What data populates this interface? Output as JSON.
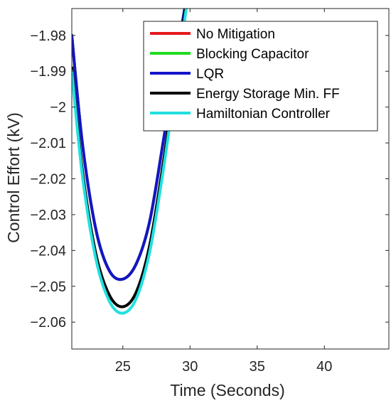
{
  "chart_data": {
    "type": "line",
    "title": "",
    "xlabel": "Time (Seconds)",
    "ylabel": "Control Effort (kV)",
    "xlim": [
      21.2,
      44.8
    ],
    "ylim": [
      -2.0675,
      -1.9725
    ],
    "xticks": [
      25,
      30,
      35,
      40
    ],
    "xtick_labels": [
      "25",
      "30",
      "35",
      "40"
    ],
    "yticks": [
      -1.98,
      -1.99,
      -2.0,
      -2.01,
      -2.02,
      -2.03,
      -2.04,
      -2.05,
      -2.06
    ],
    "ytick_labels": [
      "−1.98",
      "−1.99",
      "−2",
      "−2.01",
      "−2.02",
      "−2.03",
      "−2.04",
      "−2.05",
      "−2.06"
    ],
    "grid": false,
    "legend_position": "top-right",
    "series": [
      {
        "name": "No Mitigation",
        "color": "#e41a1c",
        "points": [
          [
            21.2,
            -1.98
          ],
          [
            22,
            -2.0105
          ],
          [
            23,
            -2.0343
          ],
          [
            24,
            -2.0457
          ],
          [
            25,
            -2.048
          ],
          [
            26,
            -2.0437
          ],
          [
            27,
            -2.0318
          ],
          [
            28,
            -2.0098
          ],
          [
            29,
            -1.9863
          ],
          [
            29.8,
            -1.968
          ]
        ]
      },
      {
        "name": "Blocking Capacitor",
        "color": "#1fdc1f",
        "points": [
          [
            21.2,
            -1.98
          ],
          [
            22,
            -2.0105
          ],
          [
            23,
            -2.0343
          ],
          [
            24,
            -2.0457
          ],
          [
            25,
            -2.048
          ],
          [
            26,
            -2.0437
          ],
          [
            27,
            -2.0318
          ],
          [
            28,
            -2.0098
          ],
          [
            29,
            -1.9863
          ],
          [
            29.8,
            -1.968
          ]
        ]
      },
      {
        "name": "LQR",
        "color": "#1414c8",
        "points": [
          [
            21.2,
            -1.98
          ],
          [
            22,
            -2.0105
          ],
          [
            23,
            -2.0343
          ],
          [
            24,
            -2.0457
          ],
          [
            25,
            -2.048
          ],
          [
            26,
            -2.0437
          ],
          [
            27,
            -2.0318
          ],
          [
            28,
            -2.0098
          ],
          [
            29,
            -1.9863
          ],
          [
            29.8,
            -1.968
          ]
        ]
      },
      {
        "name": "Energy Storage Min. FF",
        "color": "#000000",
        "points": [
          [
            21.2,
            -1.989
          ],
          [
            22,
            -2.0181
          ],
          [
            23,
            -2.0411
          ],
          [
            24,
            -2.0525
          ],
          [
            25,
            -2.0557
          ],
          [
            26,
            -2.0516
          ],
          [
            27,
            -2.0385
          ],
          [
            28,
            -2.0158
          ],
          [
            29,
            -1.9893
          ],
          [
            29.8,
            -1.969
          ]
        ]
      },
      {
        "name": "Hamiltonian Controller",
        "color": "#22e0e0",
        "points": [
          [
            21.2,
            -1.99
          ],
          [
            22,
            -2.0195
          ],
          [
            23,
            -2.0425
          ],
          [
            24,
            -2.0542
          ],
          [
            25,
            -2.0575
          ],
          [
            26,
            -2.0534
          ],
          [
            27,
            -2.0404
          ],
          [
            28,
            -2.0178
          ],
          [
            29,
            -1.9912
          ],
          [
            29.8,
            -1.9705
          ]
        ]
      }
    ]
  }
}
